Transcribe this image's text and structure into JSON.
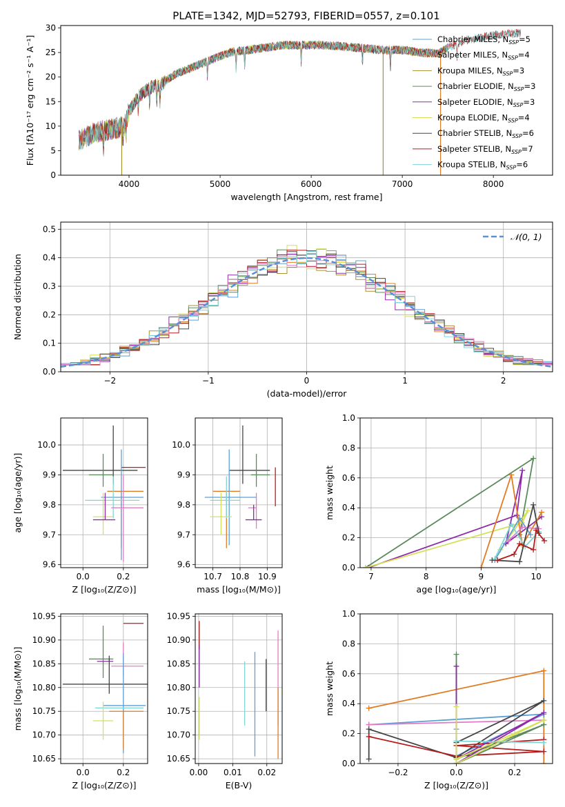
{
  "figure_title": "PLATE=1342, MJD=52793, FIBERID=0557, z=0.101",
  "colors": {
    "grid": "#b0b0b0",
    "normal_curve": "#5b8fd6"
  },
  "chart_data": [
    {
      "id": "spectrum",
      "type": "line",
      "xlabel": "wavelength [Angstrom, rest frame]",
      "ylabel": "Flux [fλ10⁻¹⁷ erg cm⁻² s⁻¹ A⁻¹]",
      "xlim": [
        3250,
        8650
      ],
      "ylim": [
        0,
        30.5
      ],
      "xticks": [
        4000,
        5000,
        6000,
        7000,
        8000
      ],
      "yticks": [
        0,
        5,
        10,
        15,
        20,
        25,
        30
      ],
      "grid": false,
      "legend_position": "upper-right",
      "series": [
        {
          "name": "Chabrier MILES, N_SSP=5",
          "color": "#5a9fd6"
        },
        {
          "name": "Salpeter MILES, N_SSP=4",
          "color": "#e07b22"
        },
        {
          "name": "Kroupa MILES, N_SSP=3",
          "color": "#a8922a"
        },
        {
          "name": "Chabrier ELODIE, N_SSP=3",
          "color": "#5a8a5a"
        },
        {
          "name": "Salpeter ELODIE, N_SSP=3",
          "color": "#8e2aa8"
        },
        {
          "name": "Kroupa ELODIE, N_SSP=4",
          "color": "#d4e05a"
        },
        {
          "name": "Chabrier STELIB, N_SSP=6",
          "color": "#444444"
        },
        {
          "name": "Salpeter STELIB, N_SSP=7",
          "color": "#b51c1c"
        },
        {
          "name": "Kroupa STELIB, N_SSP=6",
          "color": "#7fd6d6"
        }
      ],
      "continuum": {
        "wavelength": [
          3450,
          3600,
          3700,
          3850,
          3950,
          4000,
          4100,
          4250,
          4350,
          4500,
          4700,
          4900,
          5100,
          5300,
          5500,
          5700,
          5900,
          6100,
          6300,
          6500,
          6800,
          7000,
          7200,
          7400,
          7500,
          7700,
          8000,
          8300
        ],
        "flux": [
          7,
          8.5,
          9,
          9.5,
          10,
          13,
          16,
          18,
          18.5,
          20.5,
          22,
          23.5,
          25,
          25.5,
          26,
          26.5,
          26.5,
          26.5,
          26.3,
          26,
          25.5,
          25.5,
          25,
          24.8,
          26,
          27.5,
          28.5,
          29
        ]
      },
      "spikes": [
        {
          "wavelength": 3920,
          "value": 0
        },
        {
          "wavelength": 6790,
          "value": 0
        },
        {
          "wavelength": 7420,
          "value": 0
        }
      ]
    },
    {
      "id": "residuals",
      "type": "step",
      "xlabel": "(data-model)/error",
      "ylabel": "Normed distribution",
      "xlim": [
        -2.5,
        2.5
      ],
      "ylim": [
        0,
        0.525
      ],
      "xticks": [
        -2,
        -1,
        0,
        1,
        2
      ],
      "yticks": [
        0.0,
        0.1,
        0.2,
        0.3,
        0.4,
        0.5
      ],
      "grid": true,
      "legend_position": "upper-right",
      "normal_legend": "𝒩(0, 1)",
      "bin_width": 0.1,
      "series_colors": [
        "#5a9fd6",
        "#e07b22",
        "#a8922a",
        "#5a8a5a",
        "#8e2aa8",
        "#d4e05a",
        "#444444",
        "#b51c1c",
        "#7fd6d6",
        "#e07bc8"
      ]
    },
    {
      "id": "age-vs-Z",
      "type": "errorbar",
      "xlabel": "Z [log₁₀(Z/Z⊙)]",
      "ylabel": "age  [log₁₀(age/yr)]",
      "xlim": [
        -0.11,
        0.32
      ],
      "ylim": [
        9.59,
        10.09
      ],
      "xticks": [
        0.0,
        0.2
      ],
      "yticks": [
        9.6,
        9.7,
        9.8,
        9.9,
        10.0
      ],
      "grid": true,
      "points": [
        {
          "x": 0.15,
          "y": 9.915,
          "xerr": [
            0.25,
            0.12
          ],
          "yerr": [
            0.045,
            0.15
          ],
          "color": "#444444"
        },
        {
          "x": 0.21,
          "y": 9.925,
          "xerr": [
            0.02,
            0.1
          ],
          "yerr": [
            0.0,
            0.0
          ],
          "color": "#b51c1c"
        },
        {
          "x": 0.1,
          "y": 9.9,
          "xerr": [
            0.07,
            0.05
          ],
          "yerr": [
            0.04,
            0.07
          ],
          "color": "#5a8a5a"
        },
        {
          "x": 0.19,
          "y": 9.845,
          "xerr": [
            0.07,
            0.11
          ],
          "yerr": [
            0.19,
            0.0
          ],
          "color": "#e07b22"
        },
        {
          "x": 0.19,
          "y": 9.825,
          "xerr": [
            0.1,
            0.11
          ],
          "yerr": [
            0.21,
            0.16
          ],
          "color": "#5a9fd6"
        },
        {
          "x": 0.15,
          "y": 9.815,
          "xerr": [
            0.14,
            0.13
          ],
          "yerr": [
            0.06,
            0.08
          ],
          "color": "#7fd6d6"
        },
        {
          "x": 0.2,
          "y": 9.79,
          "xerr": [
            0.06,
            0.1
          ],
          "yerr": [
            0.18,
            0.11
          ],
          "color": "#e07bc8"
        },
        {
          "x": 0.1,
          "y": 9.76,
          "xerr": [
            0.05,
            0.05
          ],
          "yerr": [
            0.06,
            0.08
          ],
          "color": "#d4e05a"
        },
        {
          "x": 0.11,
          "y": 9.75,
          "xerr": [
            0.06,
            0.05
          ],
          "yerr": [
            0.0,
            0.09
          ],
          "color": "#8e2aa8"
        }
      ]
    },
    {
      "id": "age-vs-mass",
      "type": "errorbar",
      "xlabel": "mass [log₁₀(M/M⊙)]",
      "ylabel": "",
      "xlim": [
        10.635,
        10.955
      ],
      "ylim": [
        9.59,
        10.09
      ],
      "xticks": [
        10.7,
        10.8,
        10.9
      ],
      "yticks": [
        9.6,
        9.7,
        9.8,
        9.9,
        10.0
      ],
      "grid": true,
      "points": [
        {
          "x": 10.81,
          "y": 9.915,
          "xerr": [
            0.05,
            0.1
          ],
          "yerr": [
            0.045,
            0.15
          ],
          "color": "#444444"
        },
        {
          "x": 10.93,
          "y": 9.925,
          "xerr": [
            0.0,
            0.0
          ],
          "yerr": [
            0.13,
            0.0
          ],
          "color": "#b51c1c"
        },
        {
          "x": 10.86,
          "y": 9.9,
          "xerr": [
            0.02,
            0.05
          ],
          "yerr": [
            0.04,
            0.07
          ],
          "color": "#5a8a5a"
        },
        {
          "x": 10.75,
          "y": 9.845,
          "xerr": [
            0.05,
            0.05
          ],
          "yerr": [
            0.19,
            0.0
          ],
          "color": "#e07b22"
        },
        {
          "x": 10.76,
          "y": 9.825,
          "xerr": [
            0.09,
            0.1
          ],
          "yerr": [
            0.16,
            0.16
          ],
          "color": "#5a9fd6"
        },
        {
          "x": 10.75,
          "y": 9.815,
          "xerr": [
            0.06,
            0.05
          ],
          "yerr": [
            0.06,
            0.08
          ],
          "color": "#7fd6d6"
        },
        {
          "x": 10.86,
          "y": 9.79,
          "xerr": [
            0.03,
            0.0
          ],
          "yerr": [
            0.07,
            0.05
          ],
          "color": "#e07bc8"
        },
        {
          "x": 10.73,
          "y": 9.76,
          "xerr": [
            0.04,
            0.04
          ],
          "yerr": [
            0.06,
            0.08
          ],
          "color": "#d4e05a"
        },
        {
          "x": 10.85,
          "y": 9.75,
          "xerr": [
            0.03,
            0.03
          ],
          "yerr": [
            0.0,
            0.05
          ],
          "color": "#8e2aa8"
        }
      ]
    },
    {
      "id": "mass-weight-vs-age",
      "type": "line",
      "xlabel": "age  [log₁₀(age/yr)]",
      "ylabel": "mass weight",
      "xlim": [
        6.8,
        10.3
      ],
      "ylim": [
        0,
        1
      ],
      "xticks": [
        7,
        8,
        9,
        10
      ],
      "yticks": [
        0.0,
        0.2,
        0.4,
        0.6,
        0.8,
        1.0
      ],
      "grid": true,
      "series": [
        {
          "color": "#5a8a5a",
          "x": [
            6.9,
            9.95,
            9.7
          ],
          "y": [
            0.0,
            0.73,
            0.22
          ]
        },
        {
          "color": "#8e2aa8",
          "x": [
            6.95,
            9.65,
            9.75,
            9.45,
            10.1
          ],
          "y": [
            0.0,
            0.35,
            0.65,
            0.16,
            0.34
          ]
        },
        {
          "color": "#d4e05a",
          "x": [
            6.9,
            9.75,
            9.85,
            9.35
          ],
          "y": [
            0.0,
            0.3,
            0.38,
            0.12
          ]
        },
        {
          "color": "#e07b22",
          "x": [
            9.0,
            9.55,
            9.75,
            10.1
          ],
          "y": [
            0.0,
            0.62,
            0.15,
            0.37
          ]
        },
        {
          "color": "#5a9fd6",
          "x": [
            9.25,
            9.7,
            9.9
          ],
          "y": [
            0.05,
            0.33,
            0.22
          ]
        },
        {
          "color": "#e07bc8",
          "x": [
            9.5,
            9.75,
            10.05
          ],
          "y": [
            0.18,
            0.27,
            0.26
          ]
        },
        {
          "color": "#7fd6d6",
          "x": [
            9.25,
            9.55,
            9.8,
            10.05
          ],
          "y": [
            0.06,
            0.29,
            0.14,
            0.24
          ]
        },
        {
          "color": "#444444",
          "x": [
            9.2,
            9.7,
            9.95,
            10.05
          ],
          "y": [
            0.05,
            0.04,
            0.42,
            0.23
          ]
        },
        {
          "color": "#b51c1c",
          "x": [
            9.3,
            9.6,
            9.7,
            9.95,
            10.0,
            10.15
          ],
          "y": [
            0.05,
            0.09,
            0.16,
            0.12,
            0.25,
            0.18
          ]
        }
      ]
    },
    {
      "id": "mass-vs-Z",
      "type": "errorbar",
      "xlabel": "Z [log₁₀(Z/Z⊙)]",
      "ylabel": "mass [log₁₀(M/M⊙)]",
      "xlim": [
        -0.11,
        0.32
      ],
      "ylim": [
        10.64,
        10.955
      ],
      "xticks": [
        0.0,
        0.2
      ],
      "yticks": [
        10.65,
        10.7,
        10.75,
        10.8,
        10.85,
        10.9,
        10.95
      ],
      "grid": true,
      "points": [
        {
          "x": 0.2,
          "y": 10.935,
          "xerr": [
            0.0,
            0.1
          ],
          "yerr": [
            0.0,
            0.0
          ],
          "color": "#b51c1c"
        },
        {
          "x": 0.1,
          "y": 10.86,
          "xerr": [
            0.07,
            0.05
          ],
          "yerr": [
            0.04,
            0.07
          ],
          "color": "#5a8a5a"
        },
        {
          "x": 0.12,
          "y": 10.855,
          "xerr": [
            0.05,
            0.03
          ],
          "yerr": [
            0.0,
            0.0
          ],
          "color": "#8e2aa8"
        },
        {
          "x": 0.2,
          "y": 10.845,
          "xerr": [
            0.06,
            0.1
          ],
          "yerr": [
            0.02,
            0.05
          ],
          "color": "#e07bc8"
        },
        {
          "x": 0.13,
          "y": 10.807,
          "xerr": [
            0.23,
            0.22
          ],
          "yerr": [
            0.02,
            0.06
          ],
          "color": "#444444"
        },
        {
          "x": 0.2,
          "y": 10.762,
          "xerr": [
            0.1,
            0.11
          ],
          "yerr": [
            0.1,
            0.11
          ],
          "color": "#5a9fd6"
        },
        {
          "x": 0.2,
          "y": 10.757,
          "xerr": [
            0.14,
            0.1
          ],
          "yerr": [
            0.0,
            0.0
          ],
          "color": "#7fd6d6"
        },
        {
          "x": 0.2,
          "y": 10.75,
          "xerr": [
            0.07,
            0.1
          ],
          "yerr": [
            0.08,
            0.0
          ],
          "color": "#e07b22"
        },
        {
          "x": 0.1,
          "y": 10.73,
          "xerr": [
            0.05,
            0.05
          ],
          "yerr": [
            0.04,
            0.04
          ],
          "color": "#d4e05a"
        }
      ]
    },
    {
      "id": "mass-vs-EBV",
      "type": "errorbar",
      "xlabel": "E(B-V)",
      "ylabel": "",
      "xlim": [
        -0.001,
        0.0245
      ],
      "ylim": [
        10.64,
        10.955
      ],
      "xticks": [
        0.0,
        0.01,
        0.02
      ],
      "yticks": [
        10.65,
        10.7,
        10.75,
        10.8,
        10.85,
        10.9,
        10.95
      ],
      "grid": true,
      "points": [
        {
          "x": 0.0002,
          "y": 10.91,
          "xerr": [
            0,
            0
          ],
          "yerr": [
            0.03,
            0.03
          ],
          "color": "#b51c1c"
        },
        {
          "x": 0.0002,
          "y": 10.85,
          "xerr": [
            0,
            0
          ],
          "yerr": [
            0.05,
            0.04
          ],
          "color": "#8e2aa8"
        },
        {
          "x": 0.0002,
          "y": 10.73,
          "xerr": [
            0,
            0
          ],
          "yerr": [
            0.04,
            0.05
          ],
          "color": "#d4e05a"
        },
        {
          "x": 0.0135,
          "y": 10.785,
          "xerr": [
            0,
            0
          ],
          "yerr": [
            0.065,
            0.07
          ],
          "color": "#7fd6d6"
        },
        {
          "x": 0.0165,
          "y": 10.765,
          "xerr": [
            0,
            0
          ],
          "yerr": [
            0.11,
            0.11
          ],
          "color": "#5a9fd6"
        },
        {
          "x": 0.0198,
          "y": 10.81,
          "xerr": [
            0,
            0
          ],
          "yerr": [
            0.06,
            0.05
          ],
          "color": "#444444"
        },
        {
          "x": 0.0233,
          "y": 10.82,
          "xerr": [
            0,
            0
          ],
          "yerr": [
            0.1,
            0.1
          ],
          "color": "#e07bc8"
        },
        {
          "x": 0.0233,
          "y": 10.73,
          "xerr": [
            0,
            0
          ],
          "yerr": [
            0.08,
            0.07
          ],
          "color": "#e07b22"
        }
      ]
    },
    {
      "id": "mass-weight-vs-Z",
      "type": "line",
      "xlabel": "Z [log₁₀(Z/Z⊙)]",
      "ylabel": "mass weight",
      "xlim": [
        -0.33,
        0.33
      ],
      "ylim": [
        0,
        1
      ],
      "xticks": [
        -0.2,
        0.0,
        0.2
      ],
      "yticks": [
        0.0,
        0.2,
        0.4,
        0.6,
        0.8,
        1.0
      ],
      "grid": true,
      "series": [
        {
          "color": "#e07b22",
          "x": [
            -0.3,
            0.3,
            0.3,
            0.3
          ],
          "y": [
            0.37,
            0.62,
            0.0,
            0.16
          ]
        },
        {
          "color": "#5a9fd6",
          "x": [
            -0.3,
            0.3,
            0.0,
            0.0
          ],
          "y": [
            0.26,
            0.33,
            0.05,
            0.23
          ]
        },
        {
          "color": "#e07bc8",
          "x": [
            -0.3,
            0.3,
            0.3
          ],
          "y": [
            0.26,
            0.29,
            0.26
          ]
        },
        {
          "color": "#444444",
          "x": [
            -0.3,
            -0.3,
            0.0,
            0.3,
            0.0,
            0.0
          ],
          "y": [
            0.03,
            0.23,
            0.04,
            0.42,
            0.14,
            0.05
          ]
        },
        {
          "color": "#b51c1c",
          "x": [
            -0.3,
            0.0,
            0.3,
            0.0,
            0.3
          ],
          "y": [
            0.18,
            0.05,
            0.08,
            0.12,
            0.16
          ]
        },
        {
          "color": "#5a8a5a",
          "x": [
            0.0,
            0.0,
            0.3,
            0.0
          ],
          "y": [
            0.73,
            0.0,
            0.26,
            0.03
          ]
        },
        {
          "color": "#8e2aa8",
          "x": [
            0.0,
            0.0,
            0.3,
            0.0
          ],
          "y": [
            0.65,
            0.0,
            0.34,
            0.03
          ]
        },
        {
          "color": "#d4e05a",
          "x": [
            0.0,
            0.0,
            0.3,
            0.0
          ],
          "y": [
            0.38,
            0.0,
            0.29,
            0.03
          ]
        },
        {
          "color": "#7fd6d6",
          "x": [
            0.0,
            0.0,
            0.3
          ],
          "y": [
            0.15,
            0.15,
            0.14
          ]
        }
      ]
    }
  ]
}
